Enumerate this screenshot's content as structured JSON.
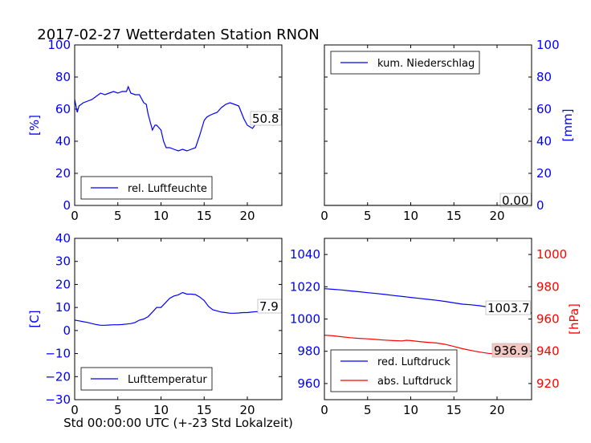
{
  "figure": {
    "title": "2017-02-27 Wetterdaten Station RNON",
    "footer": "Std 00:00:00 UTC (+-23 Std Lokalzeit)"
  },
  "colors": {
    "blue": "#0000ff",
    "red": "#ff0000",
    "black": "#000000",
    "pressure_box_fill": "#f4c7c3"
  },
  "chart_data": [
    {
      "id": "humidity",
      "type": "line",
      "xlim": [
        0,
        24
      ],
      "ylim": [
        0,
        100
      ],
      "xticks": [
        "0",
        "5",
        "10",
        "15",
        "20"
      ],
      "yticks": [
        "0",
        "20",
        "40",
        "60",
        "80",
        "100"
      ],
      "ylabel": "[%]",
      "legend": "rel. Luftfeuchte",
      "legend_position": "lower-left",
      "last_value": "50.8",
      "series": [
        {
          "name": "rel. Luftfeuchte",
          "color": "#0000ff",
          "x": [
            0,
            0.3,
            0.5,
            1,
            1.5,
            2,
            2.5,
            3,
            3.5,
            4,
            4.5,
            5,
            5.5,
            6,
            6.2,
            6.5,
            7,
            7.5,
            8,
            8.3,
            8.5,
            9,
            9.3,
            9.5,
            10,
            10.3,
            10.6,
            11,
            11.5,
            12,
            12.5,
            13,
            13.5,
            14,
            14.5,
            15,
            15.3,
            15.6,
            16,
            16.5,
            17,
            17.5,
            18,
            18.5,
            19,
            19.3,
            19.6,
            20,
            20.3,
            20.6,
            21,
            21.5,
            22,
            22.5,
            23,
            23.5,
            24
          ],
          "y": [
            66,
            58,
            62,
            64,
            65,
            66,
            68,
            70,
            69,
            70,
            71,
            70,
            71,
            71,
            74,
            70,
            69,
            69,
            64,
            63,
            57,
            47,
            50,
            50,
            47,
            40,
            36,
            36,
            35,
            34,
            35,
            34,
            35,
            36,
            44,
            53,
            55,
            56,
            57,
            58,
            61,
            63,
            64,
            63,
            62,
            58,
            54,
            50,
            49,
            48,
            51,
            50,
            52,
            51,
            50,
            51,
            51
          ]
        }
      ]
    },
    {
      "id": "precipitation",
      "type": "line",
      "xlim": [
        0,
        24
      ],
      "ylim": [
        0,
        100
      ],
      "xticks": [
        "0",
        "5",
        "10",
        "15",
        "20"
      ],
      "yticks": [
        "0",
        "20",
        "40",
        "60",
        "80",
        "100"
      ],
      "ylabel": "[mm]",
      "legend": "kum. Niederschlag",
      "legend_position": "upper-left",
      "last_value": "0.00",
      "series": [
        {
          "name": "kum. Niederschlag",
          "color": "#0000ff",
          "x": [
            0,
            24
          ],
          "y": [
            0,
            0
          ]
        }
      ]
    },
    {
      "id": "temperature",
      "type": "line",
      "xlim": [
        0,
        24
      ],
      "ylim": [
        -30,
        40
      ],
      "xticks": [
        "0",
        "5",
        "10",
        "15",
        "20"
      ],
      "yticks": [
        "−30",
        "−20",
        "−10",
        "0",
        "10",
        "20",
        "30",
        "40"
      ],
      "ylabel": "[C]",
      "legend": "Lufttemperatur",
      "legend_position": "lower-left",
      "last_value": "7.9",
      "series": [
        {
          "name": "Lufttemperatur",
          "color": "#0000ff",
          "x": [
            0,
            0.5,
            1,
            1.5,
            2,
            2.5,
            3,
            3.5,
            4,
            4.5,
            5,
            5.5,
            6,
            6.5,
            7,
            7.5,
            8,
            8.5,
            9,
            9.5,
            10,
            10.5,
            11,
            11.5,
            12,
            12.5,
            13,
            13.5,
            14,
            14.5,
            15,
            15.5,
            16,
            16.5,
            17,
            17.5,
            18,
            18.5,
            19,
            19.5,
            20,
            20.5,
            21,
            21.5,
            22,
            22.5,
            23,
            23.5,
            24
          ],
          "y": [
            4.5,
            4.2,
            3.8,
            3.5,
            3.0,
            2.6,
            2.3,
            2.3,
            2.4,
            2.5,
            2.5,
            2.6,
            2.8,
            3.0,
            3.5,
            4.5,
            5.0,
            6.0,
            8.0,
            10.0,
            10.0,
            12.0,
            14.0,
            15.0,
            15.5,
            16.5,
            15.8,
            15.8,
            15.6,
            14.5,
            13.0,
            10.5,
            9.0,
            8.5,
            8.0,
            7.8,
            7.5,
            7.5,
            7.6,
            7.8,
            7.8,
            8.0,
            8.2,
            8.0,
            8.2,
            7.9,
            8.0,
            7.9,
            7.9
          ]
        }
      ]
    },
    {
      "id": "pressure",
      "type": "line",
      "xlim": [
        0,
        24
      ],
      "ylim": [
        950,
        1050
      ],
      "ylim_right": [
        910,
        1010
      ],
      "xticks": [
        "0",
        "5",
        "10",
        "15",
        "20"
      ],
      "yticks": [
        "960",
        "980",
        "1000",
        "1020",
        "1040"
      ],
      "yticks_right": [
        "920",
        "940",
        "960",
        "980",
        "1000"
      ],
      "ylabel_right": "[hPa]",
      "legend_position": "lower-left",
      "series": [
        {
          "name": "red. Luftdruck",
          "color": "#0000ff",
          "axis": "left",
          "last_value": "1003.7",
          "x": [
            0,
            1,
            2,
            3,
            4,
            5,
            6,
            7,
            8,
            9,
            10,
            11,
            12,
            13,
            14,
            15,
            16,
            17,
            18,
            19,
            20,
            21,
            22,
            23,
            24
          ],
          "y": [
            1018.8,
            1018.4,
            1018.0,
            1017.4,
            1016.9,
            1016.3,
            1015.8,
            1015.2,
            1014.6,
            1014.0,
            1013.4,
            1012.8,
            1012.2,
            1011.6,
            1010.9,
            1010.0,
            1009.2,
            1008.8,
            1008.2,
            1007.4,
            1006.6,
            1005.8,
            1005.0,
            1004.3,
            1003.7
          ]
        },
        {
          "name": "abs. Luftdruck",
          "color": "#ff0000",
          "axis": "right",
          "last_value": "936.9",
          "x": [
            0,
            1,
            2,
            3,
            4,
            5,
            6,
            7,
            8,
            9,
            9.5,
            10,
            11,
            12,
            13,
            14,
            15,
            16,
            17,
            18,
            19,
            20,
            21,
            22,
            23,
            24
          ],
          "y": [
            950.0,
            949.6,
            949.0,
            948.4,
            948.0,
            947.7,
            947.3,
            946.9,
            946.6,
            946.4,
            946.8,
            946.6,
            946.0,
            945.5,
            945.1,
            944.3,
            943.0,
            941.6,
            940.5,
            939.5,
            938.7,
            938.3,
            937.9,
            937.4,
            937.1,
            936.9
          ]
        }
      ]
    }
  ]
}
